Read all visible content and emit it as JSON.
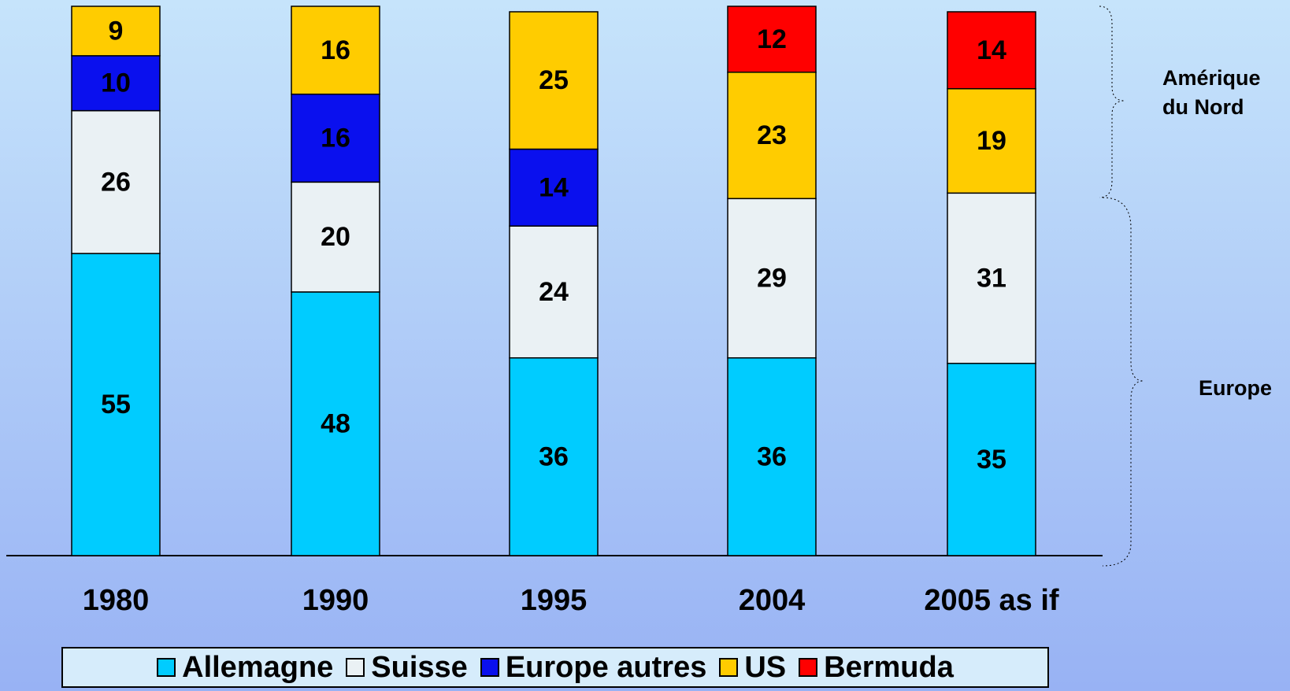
{
  "chart_data": {
    "type": "stacked_bar",
    "categories": [
      "1980",
      "1990",
      "1995",
      "2004",
      "2005 as if"
    ],
    "series": [
      {
        "name": "Allemagne",
        "color": "#00ccff",
        "values": [
          55,
          48,
          36,
          36,
          35
        ]
      },
      {
        "name": "Suisse",
        "color": "#eaf1f4",
        "values": [
          26,
          20,
          24,
          29,
          31
        ]
      },
      {
        "name": "Europe autres",
        "color": "#0a10ee",
        "values": [
          10,
          16,
          14,
          null,
          null
        ]
      },
      {
        "name": "US",
        "color": "#ffcc00",
        "values": [
          9,
          16,
          25,
          23,
          19
        ]
      },
      {
        "name": "Bermuda",
        "color": "#ff0000",
        "values": [
          null,
          null,
          null,
          12,
          14
        ]
      }
    ],
    "ylim": [
      0,
      100
    ],
    "annotations": [
      "Amérique du Nord",
      "Europe"
    ]
  }
}
